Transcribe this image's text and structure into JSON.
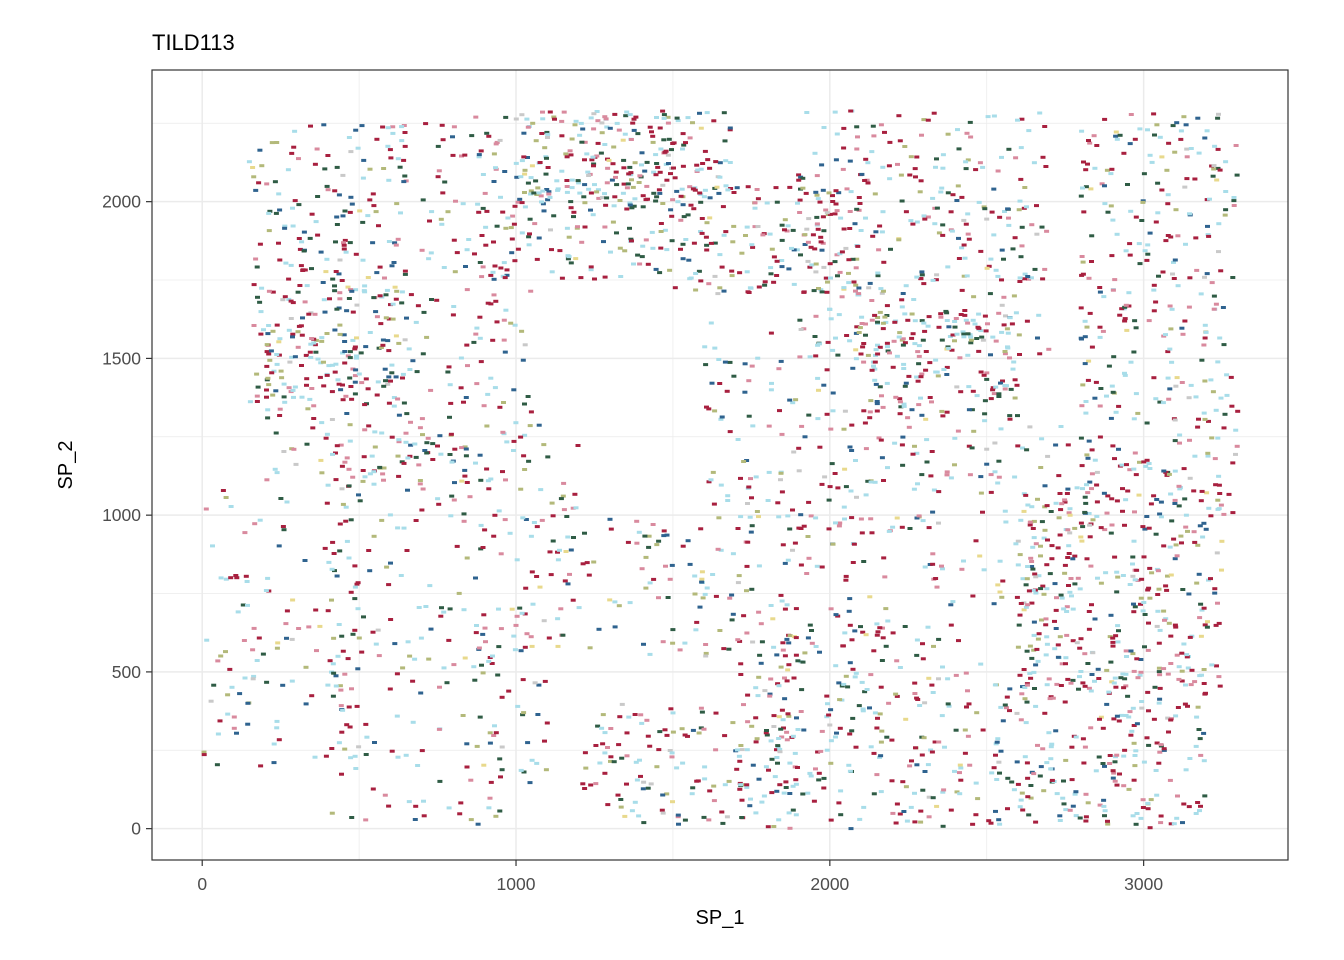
{
  "chart_data": {
    "type": "scatter",
    "title": "TILD113",
    "xlabel": "SP_1",
    "ylabel": "SP_2",
    "xlim": [
      -160,
      3460
    ],
    "ylim": [
      -100,
      2420
    ],
    "xticks": [
      0,
      1000,
      2000,
      3000
    ],
    "yticks": [
      0,
      500,
      1000,
      1500,
      2000
    ],
    "grid": true,
    "legend": "none",
    "palette": [
      "#a8203f",
      "#a8dde9",
      "#d98a9e",
      "#2f638f",
      "#2f5c45",
      "#b3b97a",
      "#c9c9c9",
      "#e8d98c"
    ],
    "point_regions": [
      {
        "x": [
          150,
          650
        ],
        "y": [
          1350,
          2250
        ],
        "count": 260
      },
      {
        "x": [
          200,
          1050
        ],
        "y": [
          1100,
          1750
        ],
        "count": 240
      },
      {
        "x": [
          700,
          1500
        ],
        "y": [
          1750,
          2290
        ],
        "count": 260
      },
      {
        "x": [
          1000,
          1700
        ],
        "y": [
          2000,
          2290
        ],
        "count": 160
      },
      {
        "x": [
          1500,
          2100
        ],
        "y": [
          1700,
          2050
        ],
        "count": 160
      },
      {
        "x": [
          1900,
          2700
        ],
        "y": [
          1500,
          2290
        ],
        "count": 320
      },
      {
        "x": [
          2100,
          2600
        ],
        "y": [
          1300,
          1650
        ],
        "count": 150
      },
      {
        "x": [
          2800,
          3300
        ],
        "y": [
          1000,
          2290
        ],
        "count": 340
      },
      {
        "x": [
          2600,
          3250
        ],
        "y": [
          450,
          1100
        ],
        "count": 320
      },
      {
        "x": [
          2500,
          3200
        ],
        "y": [
          0,
          500
        ],
        "count": 240
      },
      {
        "x": [
          1700,
          2500
        ],
        "y": [
          0,
          650
        ],
        "count": 260
      },
      {
        "x": [
          1200,
          1900
        ],
        "y": [
          0,
          400
        ],
        "count": 140
      },
      {
        "x": [
          400,
          1100
        ],
        "y": [
          0,
          700
        ],
        "count": 150
      },
      {
        "x": [
          0,
          500
        ],
        "y": [
          200,
          1100
        ],
        "count": 120
      },
      {
        "x": [
          1100,
          2200
        ],
        "y": [
          550,
          1000
        ],
        "count": 180
      },
      {
        "x": [
          1600,
          2300
        ],
        "y": [
          950,
          1650
        ],
        "count": 170
      },
      {
        "x": [
          400,
          1200
        ],
        "y": [
          700,
          1300
        ],
        "count": 130
      },
      {
        "x": [
          2300,
          2800
        ],
        "y": [
          700,
          1300
        ],
        "count": 100
      }
    ]
  }
}
